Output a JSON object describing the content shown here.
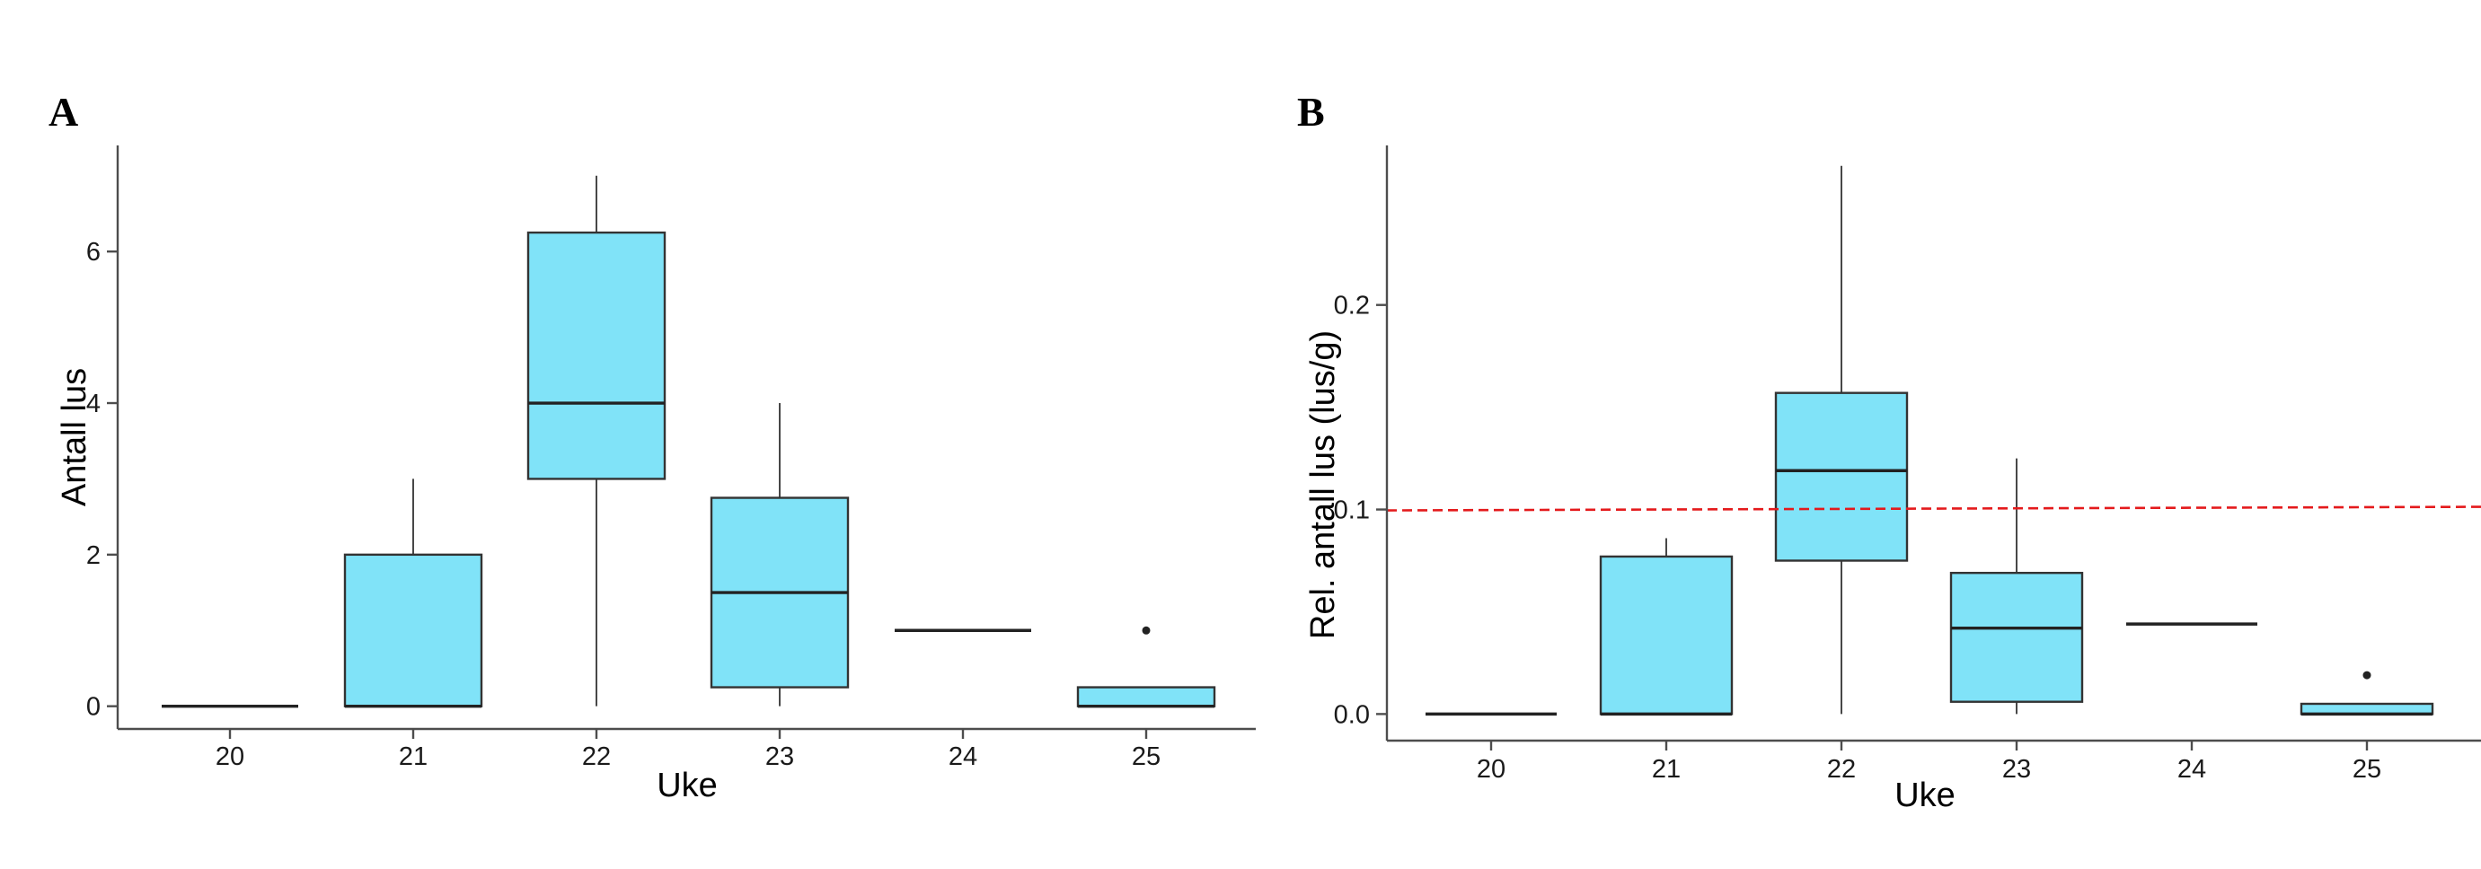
{
  "colors": {
    "box_fill": "#80e3f8",
    "box_stroke": "#333333",
    "reference_line": "#e41a1c"
  },
  "chart_data": [
    {
      "type": "box",
      "panel_label": "A",
      "xlabel": "Uke",
      "ylabel": "Antall lus",
      "categories": [
        "20",
        "21",
        "22",
        "23",
        "24",
        "25"
      ],
      "yticks": [
        "0",
        "2",
        "4",
        "6"
      ],
      "ylim": [
        -0.3,
        7.4
      ],
      "grid": false,
      "boxes": [
        {
          "q1": 0,
          "median": 0,
          "q3": 0,
          "whisker_low": 0,
          "whisker_high": 0,
          "outliers": []
        },
        {
          "q1": 0,
          "median": 0,
          "q3": 2,
          "whisker_low": 0,
          "whisker_high": 3,
          "outliers": []
        },
        {
          "q1": 3,
          "median": 4,
          "q3": 6.25,
          "whisker_low": 0,
          "whisker_high": 7,
          "outliers": []
        },
        {
          "q1": 0.25,
          "median": 1.5,
          "q3": 2.75,
          "whisker_low": 0,
          "whisker_high": 4,
          "outliers": []
        },
        {
          "q1": 1,
          "median": 1,
          "q3": 1,
          "whisker_low": 1,
          "whisker_high": 1,
          "outliers": []
        },
        {
          "q1": 0,
          "median": 0,
          "q3": 0.25,
          "whisker_low": 0,
          "whisker_high": 0.25,
          "outliers": [
            1
          ]
        }
      ]
    },
    {
      "type": "box",
      "panel_label": "B",
      "xlabel": "Uke",
      "ylabel": "Rel. antall lus (lus/g)",
      "categories": [
        "20",
        "21",
        "22",
        "23",
        "24",
        "25"
      ],
      "yticks": [
        "0.0",
        "0.1",
        "0.2"
      ],
      "ylim": [
        -0.013,
        0.278
      ],
      "grid": false,
      "reference_line": {
        "y": 0.1,
        "style": "dashed"
      },
      "boxes": [
        {
          "q1": 0,
          "median": 0,
          "q3": 0,
          "whisker_low": 0,
          "whisker_high": 0,
          "outliers": []
        },
        {
          "q1": 0,
          "median": 0,
          "q3": 0.077,
          "whisker_low": 0,
          "whisker_high": 0.086,
          "outliers": []
        },
        {
          "q1": 0.075,
          "median": 0.119,
          "q3": 0.157,
          "whisker_low": 0,
          "whisker_high": 0.268,
          "outliers": []
        },
        {
          "q1": 0.006,
          "median": 0.042,
          "q3": 0.069,
          "whisker_low": 0,
          "whisker_high": 0.125,
          "outliers": []
        },
        {
          "q1": 0.044,
          "median": 0.044,
          "q3": 0.044,
          "whisker_low": 0.044,
          "whisker_high": 0.044,
          "outliers": []
        },
        {
          "q1": 0,
          "median": 0,
          "q3": 0.005,
          "whisker_low": 0,
          "whisker_high": 0.005,
          "outliers": [
            0.019
          ]
        }
      ]
    }
  ]
}
